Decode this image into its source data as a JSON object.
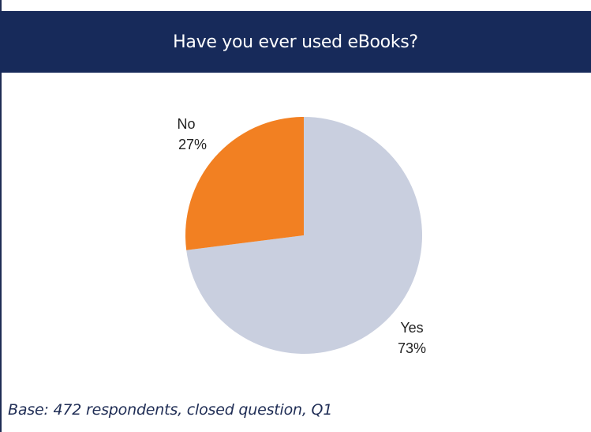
{
  "chart_data": {
    "type": "pie",
    "title": "Have you ever used eBooks?",
    "slices": [
      {
        "label": "Yes",
        "value": 73,
        "value_label": "73%",
        "color": "#c9cfdf"
      },
      {
        "label": "No",
        "value": 27,
        "value_label": "27%",
        "color": "#f28022"
      }
    ],
    "footnote": "Base: 472 respondents, closed question, Q1"
  },
  "colors": {
    "header_bg": "#172a5a",
    "header_text": "#ffffff",
    "frame_border": "#1f2d55"
  }
}
